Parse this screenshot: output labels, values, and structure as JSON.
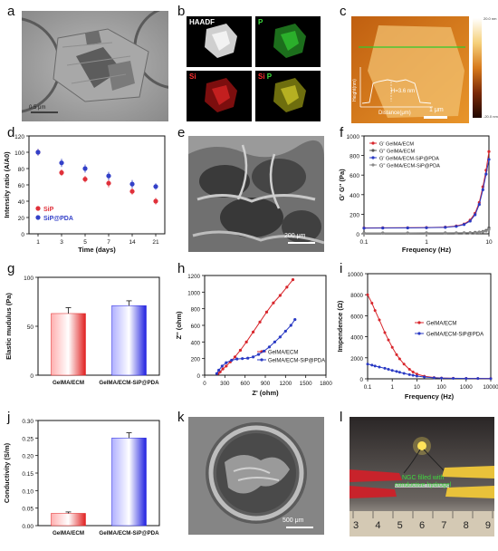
{
  "panel_letters": {
    "a": "a",
    "b": "b",
    "c": "c",
    "d": "d",
    "e": "e",
    "f": "f",
    "g": "g",
    "h": "h",
    "i": "i",
    "j": "j",
    "k": "k",
    "l": "l"
  },
  "panel_a": {
    "scale_text": "0.5 μm"
  },
  "panel_b": {
    "tiles": [
      "HAADF",
      "P",
      "Si",
      "Si",
      "P"
    ]
  },
  "panel_c": {
    "inset_ylabel": "Height(nm)",
    "inset_xlabel": "Distance(μm)",
    "inset_annotation": "H=3.6 nm",
    "scale_bar": "1 μm",
    "colorbar_top": "20.0 nm",
    "colorbar_bottom": "-20.0 nm",
    "inset_xticks": [
      "0",
      "1",
      "2",
      "3",
      "4",
      "5"
    ]
  },
  "panel_e": {
    "scale_bar": "200 μm"
  },
  "panel_k": {
    "scale_bar": "500 μm"
  },
  "panel_l": {
    "caption_line1": "NGC filled with",
    "caption_line2": "conductive hydrogel",
    "ruler_numbers": [
      "3",
      "4",
      "5",
      "6",
      "7",
      "8",
      "9"
    ]
  },
  "chart_data": [
    {
      "panel": "d",
      "type": "scatter",
      "xlabel": "Time (days)",
      "ylabel": "Intensity ratio (A/A0)",
      "categories": [
        "1",
        "3",
        "5",
        "7",
        "14",
        "21"
      ],
      "ylim": [
        0,
        120
      ],
      "yticks": [
        "0",
        "20",
        "40",
        "60",
        "80",
        "100",
        "120"
      ],
      "series": [
        {
          "name": "SiP",
          "color": "#e0303a",
          "values": [
            100,
            75,
            67,
            62,
            52,
            40
          ],
          "errors": [
            4,
            4,
            4,
            5,
            4,
            4
          ]
        },
        {
          "name": "SiP@PDA",
          "color": "#3340c8",
          "values": [
            100,
            87,
            80,
            71,
            61,
            58
          ],
          "errors": [
            4,
            5,
            5,
            5,
            5,
            4
          ]
        }
      ]
    },
    {
      "panel": "f",
      "type": "line",
      "xlabel": "Frequency (Hz)",
      "ylabel": "G' G'' (Pa)",
      "xscale": "log",
      "xlim": [
        0.1,
        10
      ],
      "xticks": [
        "0.1",
        "1",
        "10"
      ],
      "ylim": [
        0,
        1000
      ],
      "yticks": [
        "0",
        "200",
        "400",
        "600",
        "800",
        "1000"
      ],
      "x": [
        0.1,
        0.2,
        0.5,
        1,
        2,
        3,
        4,
        5,
        6,
        7,
        8,
        9,
        10
      ],
      "series": [
        {
          "name": "G' GelMA/ECM",
          "color": "#d8262c",
          "values": [
            60,
            61,
            62,
            64,
            68,
            80,
            100,
            140,
            210,
            320,
            480,
            650,
            840
          ]
        },
        {
          "name": "G'' GelMA/ECM",
          "color": "#555555",
          "values": [
            8,
            8,
            8,
            9,
            9,
            10,
            11,
            12,
            15,
            18,
            25,
            35,
            60
          ]
        },
        {
          "name": "G' GelMA/ECM-SiP@PDA",
          "color": "#2a3ac4",
          "values": [
            58,
            59,
            60,
            62,
            66,
            76,
            95,
            130,
            195,
            300,
            450,
            610,
            760
          ]
        },
        {
          "name": "G'' GelMA/ECM-SiP@PDA",
          "color": "#8a8a8a",
          "values": [
            5,
            5,
            5,
            6,
            6,
            7,
            8,
            9,
            11,
            14,
            20,
            28,
            45
          ]
        }
      ]
    },
    {
      "panel": "g",
      "type": "bar",
      "ylabel": "Elastic mudulus (Pa)",
      "categories": [
        "GelMA/ECM",
        "GelMA/ECM-SiP@PDA"
      ],
      "values": [
        63,
        71
      ],
      "errors": [
        6,
        5
      ],
      "ylim": [
        0,
        100
      ],
      "yticks": [
        "0",
        "50",
        "100"
      ]
    },
    {
      "panel": "h",
      "type": "line",
      "xlabel": "Z' (ohm)",
      "ylabel": "Z'' (ohm)",
      "xlim": [
        0,
        1800
      ],
      "xticks": [
        "0",
        "300",
        "600",
        "900",
        "1200",
        "1500",
        "1800"
      ],
      "ylim": [
        0,
        1200
      ],
      "yticks": [
        "0",
        "200",
        "400",
        "600",
        "800",
        "1000",
        "1200"
      ],
      "series": [
        {
          "name": "GelMA/ECM",
          "color": "#d8262c",
          "x": [
            200,
            230,
            270,
            320,
            380,
            450,
            530,
            620,
            720,
            820,
            920,
            1020,
            1120,
            1220,
            1310
          ],
          "values": [
            20,
            40,
            75,
            110,
            160,
            220,
            300,
            400,
            520,
            640,
            760,
            870,
            960,
            1060,
            1150
          ]
        },
        {
          "name": "GelMA/ECM-SiP@PDA",
          "color": "#2a3ac4",
          "x": [
            180,
            210,
            260,
            320,
            400,
            480,
            560,
            640,
            720,
            800,
            880,
            960,
            1040,
            1120,
            1200,
            1280,
            1340
          ],
          "values": [
            20,
            60,
            110,
            150,
            180,
            195,
            200,
            205,
            220,
            250,
            290,
            340,
            400,
            460,
            530,
            600,
            670
          ]
        }
      ]
    },
    {
      "panel": "i",
      "type": "line",
      "xlabel": "Frequency (Hz)",
      "ylabel": "Impendence (Ω)",
      "xscale": "log",
      "xlim": [
        0.1,
        10000
      ],
      "xticks": [
        "0.1",
        "1",
        "10",
        "100",
        "1000",
        "10000"
      ],
      "ylim": [
        0,
        10000
      ],
      "yticks": [
        "0",
        "2000",
        "4000",
        "6000",
        "8000",
        "10000"
      ],
      "x": [
        0.1,
        0.15,
        0.2,
        0.3,
        0.5,
        0.7,
        1,
        1.5,
        2,
        3,
        5,
        7,
        10,
        20,
        50,
        100,
        300,
        1000,
        3000,
        10000
      ],
      "series": [
        {
          "name": "GelMA/ECM",
          "color": "#d8262c",
          "values": [
            8000,
            7200,
            6500,
            5600,
            4400,
            3700,
            3000,
            2300,
            1900,
            1400,
            900,
            650,
            450,
            250,
            120,
            80,
            50,
            40,
            35,
            30
          ]
        },
        {
          "name": "GelMA/ECM-SiP@PDA",
          "color": "#2a3ac4",
          "values": [
            1400,
            1300,
            1220,
            1120,
            1000,
            900,
            800,
            700,
            620,
            520,
            400,
            330,
            260,
            170,
            100,
            70,
            45,
            35,
            30,
            25
          ]
        }
      ]
    },
    {
      "panel": "j",
      "type": "bar",
      "ylabel": "Conductivity (S/m)",
      "categories": [
        "GelMA/ECM",
        "GelMA/ECM-SiP@PDA"
      ],
      "values": [
        0.035,
        0.25
      ],
      "errors": [
        0.004,
        0.015
      ],
      "ylim": [
        0,
        0.3
      ],
      "yticks": [
        "0.00",
        "0.05",
        "0.10",
        "0.15",
        "0.20",
        "0.25",
        "0.30"
      ]
    }
  ]
}
